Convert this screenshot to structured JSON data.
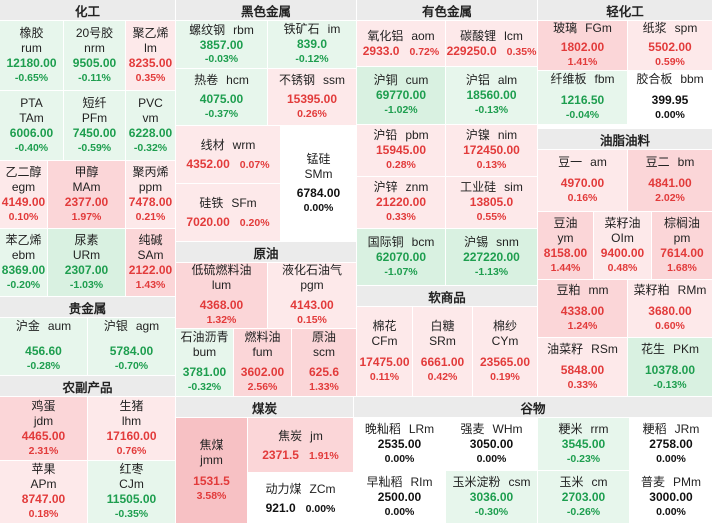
{
  "sections": {
    "huagong": "化工",
    "heise": "黑色金属",
    "youse": "有色金属",
    "qinggong": "轻化工",
    "youzhi": "油脂油料",
    "yuanyou": "原油",
    "ruanshang": "软商品",
    "guijinshu": "贵金属",
    "nongfu": "农副产品",
    "meitan": "煤炭",
    "guwu": "谷物"
  },
  "tiles": {
    "rum": {
      "cn": "橡胶",
      "code": "rum",
      "price": "12180.00",
      "pct": "-0.65%"
    },
    "nrm": {
      "cn": "20号胶",
      "code": "nrm",
      "price": "9505.00",
      "pct": "-0.11%"
    },
    "lm": {
      "cn": "聚乙烯",
      "code": "lm",
      "price": "8235.00",
      "pct": "0.35%"
    },
    "tam": {
      "cn": "PTA",
      "code": "TAm",
      "price": "6006.00",
      "pct": "-0.40%"
    },
    "pfm": {
      "cn": "短纤",
      "code": "PFm",
      "price": "7450.00",
      "pct": "-0.59%"
    },
    "vm": {
      "cn": "PVC",
      "code": "vm",
      "price": "6228.00",
      "pct": "-0.32%"
    },
    "egm": {
      "cn": "乙二醇",
      "code": "egm",
      "price": "4149.00",
      "pct": "0.10%"
    },
    "mam": {
      "cn": "甲醇",
      "code": "MAm",
      "price": "2377.00",
      "pct": "1.97%"
    },
    "ppm": {
      "cn": "聚丙烯",
      "code": "ppm",
      "price": "7478.00",
      "pct": "0.21%"
    },
    "ebm": {
      "cn": "苯乙烯",
      "code": "ebm",
      "price": "8369.00",
      "pct": "-0.20%"
    },
    "urm": {
      "cn": "尿素",
      "code": "URm",
      "price": "2307.00",
      "pct": "-1.03%"
    },
    "sam": {
      "cn": "纯碱",
      "code": "SAm",
      "price": "2122.00",
      "pct": "1.43%"
    },
    "rbm": {
      "cn": "螺纹钢",
      "code": "rbm",
      "price": "3857.00",
      "pct": "-0.03%"
    },
    "im": {
      "cn": "铁矿石",
      "code": "im",
      "price": "839.0",
      "pct": "-0.12%"
    },
    "hcm": {
      "cn": "热卷",
      "code": "hcm",
      "price": "4075.00",
      "pct": "-0.37%"
    },
    "ssm": {
      "cn": "不锈钢",
      "code": "ssm",
      "price": "15395.00",
      "pct": "0.26%"
    },
    "wrm": {
      "cn": "线材",
      "code": "wrm",
      "price": "4352.00",
      "pct": "0.07%"
    },
    "smm": {
      "cn": "锰硅",
      "code": "SMm",
      "price": "6784.00",
      "pct": "0.00%"
    },
    "sfm": {
      "cn": "硅铁",
      "code": "SFm",
      "price": "7020.00",
      "pct": "0.20%"
    },
    "aom": {
      "cn": "氧化铝",
      "code": "aom",
      "price": "2933.0",
      "pct": "0.72%"
    },
    "lcm": {
      "cn": "碳酸锂",
      "code": "lcm",
      "price": "229250.0",
      "pct": "0.35%"
    },
    "cum": {
      "cn": "沪铜",
      "code": "cum",
      "price": "69770.00",
      "pct": "-1.02%"
    },
    "alm": {
      "cn": "沪铝",
      "code": "alm",
      "price": "18560.00",
      "pct": "-0.13%"
    },
    "pbm": {
      "cn": "沪铅",
      "code": "pbm",
      "price": "15945.00",
      "pct": "0.28%"
    },
    "nim": {
      "cn": "沪镍",
      "code": "nim",
      "price": "172450.00",
      "pct": "0.13%"
    },
    "znm": {
      "cn": "沪锌",
      "code": "znm",
      "price": "21220.00",
      "pct": "0.33%"
    },
    "sim": {
      "cn": "工业硅",
      "code": "sim",
      "price": "13805.0",
      "pct": "0.55%"
    },
    "bcm": {
      "cn": "国际铜",
      "code": "bcm",
      "price": "62070.00",
      "pct": "-1.07%"
    },
    "snm": {
      "cn": "沪锡",
      "code": "snm",
      "price": "227220.00",
      "pct": "-1.13%"
    },
    "fgm": {
      "cn": "玻璃",
      "code": "FGm",
      "price": "1802.00",
      "pct": "1.41%"
    },
    "spm": {
      "cn": "纸浆",
      "code": "spm",
      "price": "5502.00",
      "pct": "0.59%"
    },
    "fbm": {
      "cn": "纤维板",
      "code": "fbm",
      "price": "1216.50",
      "pct": "-0.04%"
    },
    "bbm": {
      "cn": "胶合板",
      "code": "bbm",
      "price": "399.95",
      "pct": "0.00%"
    },
    "am": {
      "cn": "豆一",
      "code": "am",
      "price": "4970.00",
      "pct": "0.16%"
    },
    "bm": {
      "cn": "豆二",
      "code": "bm",
      "price": "4841.00",
      "pct": "2.02%"
    },
    "ym": {
      "cn": "豆油",
      "code": "ym",
      "price": "8158.00",
      "pct": "1.44%"
    },
    "oim": {
      "cn": "菜籽油",
      "code": "OIm",
      "price": "9400.00",
      "pct": "0.48%"
    },
    "pm": {
      "cn": "棕榈油",
      "code": "pm",
      "price": "7614.00",
      "pct": "1.68%"
    },
    "mm": {
      "cn": "豆粕",
      "code": "mm",
      "price": "4338.00",
      "pct": "1.24%"
    },
    "rmm": {
      "cn": "菜籽粕",
      "code": "RMm",
      "price": "3680.00",
      "pct": "0.60%"
    },
    "rsm": {
      "cn": "油菜籽",
      "code": "RSm",
      "price": "5848.00",
      "pct": "0.33%"
    },
    "pkm": {
      "cn": "花生",
      "code": "PKm",
      "price": "10378.00",
      "pct": "-0.13%"
    },
    "lum": {
      "cn": "低硫燃料油",
      "code": "lum",
      "price": "4368.00",
      "pct": "1.32%"
    },
    "pgm": {
      "cn": "液化石油气",
      "code": "pgm",
      "price": "4143.00",
      "pct": "0.15%"
    },
    "bum": {
      "cn": "石油沥青",
      "code": "bum",
      "price": "3781.00",
      "pct": "-0.32%"
    },
    "fum": {
      "cn": "燃料油",
      "code": "fum",
      "price": "3602.00",
      "pct": "2.56%"
    },
    "scm": {
      "cn": "原油",
      "code": "scm",
      "price": "625.6",
      "pct": "1.33%"
    },
    "cfm": {
      "cn": "棉花",
      "code": "CFm",
      "price": "17475.00",
      "pct": "0.11%"
    },
    "srm": {
      "cn": "白糖",
      "code": "SRm",
      "price": "6661.00",
      "pct": "0.42%"
    },
    "cym": {
      "cn": "棉纱",
      "code": "CYm",
      "price": "23565.00",
      "pct": "0.19%"
    },
    "aum": {
      "cn": "沪金",
      "code": "aum",
      "price": "456.60",
      "pct": "-0.28%"
    },
    "agm": {
      "cn": "沪银",
      "code": "agm",
      "price": "5784.00",
      "pct": "-0.70%"
    },
    "jdm": {
      "cn": "鸡蛋",
      "code": "jdm",
      "price": "4465.00",
      "pct": "2.31%"
    },
    "lhm": {
      "cn": "生猪",
      "code": "lhm",
      "price": "17160.00",
      "pct": "0.76%"
    },
    "apm": {
      "cn": "苹果",
      "code": "APm",
      "price": "8747.00",
      "pct": "0.18%"
    },
    "cjm": {
      "cn": "红枣",
      "code": "CJm",
      "price": "11505.00",
      "pct": "-0.35%"
    },
    "jmm": {
      "cn": "焦煤",
      "code": "jmm",
      "price": "1531.5",
      "pct": "3.58%"
    },
    "jm": {
      "cn": "焦炭",
      "code": "jm",
      "price": "2371.5",
      "pct": "1.91%"
    },
    "zcm": {
      "cn": "动力煤",
      "code": "ZCm",
      "price": "921.0",
      "pct": "0.00%"
    },
    "lrm": {
      "cn": "晚籼稻",
      "code": "LRm",
      "price": "2535.00",
      "pct": "0.00%"
    },
    "whm": {
      "cn": "强麦",
      "code": "WHm",
      "price": "3050.00",
      "pct": "0.00%"
    },
    "rrm": {
      "cn": "粳米",
      "code": "rrm",
      "price": "3545.00",
      "pct": "-0.23%"
    },
    "jrm": {
      "cn": "粳稻",
      "code": "JRm",
      "price": "2758.00",
      "pct": "0.00%"
    },
    "rim": {
      "cn": "早籼稻",
      "code": "RIm",
      "price": "2500.00",
      "pct": "0.00%"
    },
    "csm": {
      "cn": "玉米淀粉",
      "code": "csm",
      "price": "3036.00",
      "pct": "-0.30%"
    },
    "cm": {
      "cn": "玉米",
      "code": "cm",
      "price": "2703.00",
      "pct": "-0.26%"
    },
    "pmm": {
      "cn": "普麦",
      "code": "PMm",
      "price": "3000.00",
      "pct": "0.00%"
    }
  }
}
